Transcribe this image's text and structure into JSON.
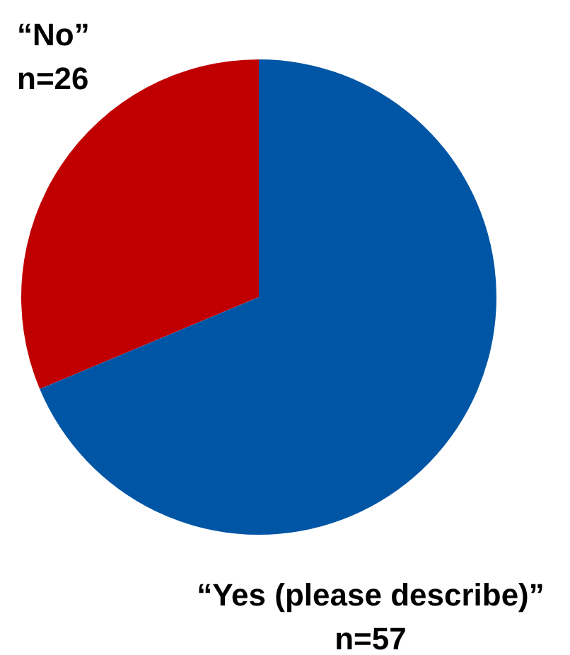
{
  "chart_data": {
    "type": "pie",
    "categories": [
      "“No”",
      "“Yes (please describe)”"
    ],
    "values": [
      26,
      57
    ],
    "value_labels": [
      "n=26",
      "n=57"
    ],
    "colors": [
      "#c00000",
      "#0055a5"
    ],
    "legend": false
  }
}
